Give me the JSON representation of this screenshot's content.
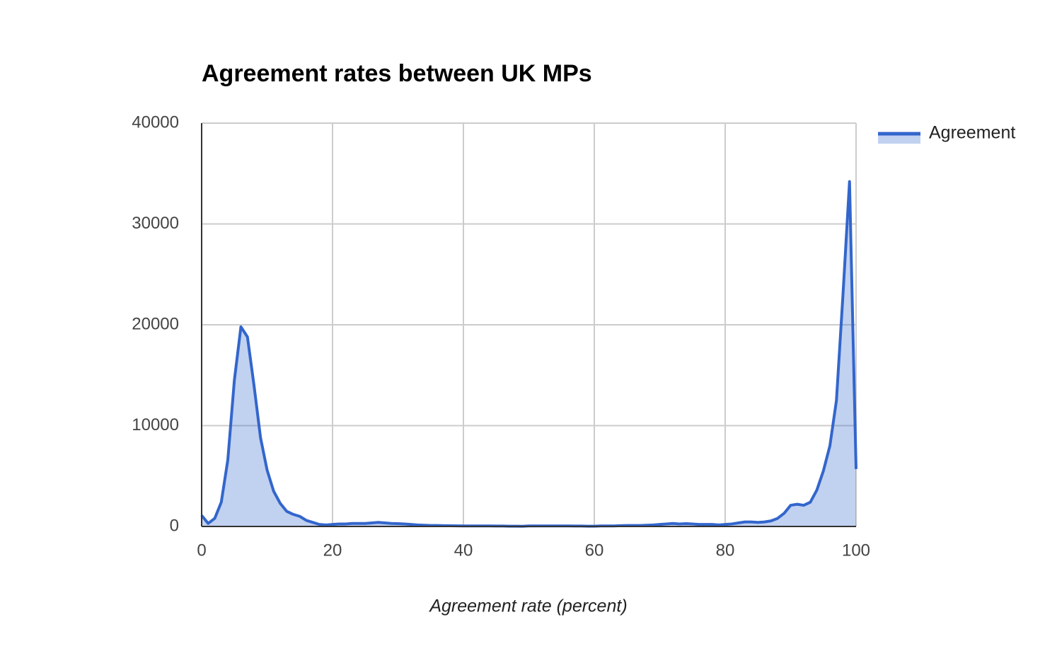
{
  "chart_data": {
    "type": "area",
    "title": "Agreement rates between UK MPs",
    "x_label": "Agreement rate (percent)",
    "x": [
      0,
      1,
      2,
      3,
      4,
      5,
      6,
      7,
      8,
      9,
      10,
      11,
      12,
      13,
      14,
      15,
      16,
      17,
      18,
      19,
      20,
      21,
      22,
      23,
      24,
      25,
      26,
      27,
      28,
      29,
      30,
      31,
      32,
      33,
      34,
      35,
      36,
      37,
      38,
      39,
      40,
      41,
      42,
      43,
      44,
      45,
      46,
      47,
      48,
      49,
      50,
      51,
      52,
      53,
      54,
      55,
      56,
      57,
      58,
      59,
      60,
      61,
      62,
      63,
      64,
      65,
      66,
      67,
      68,
      69,
      70,
      71,
      72,
      73,
      74,
      75,
      76,
      77,
      78,
      79,
      80,
      81,
      82,
      83,
      84,
      85,
      86,
      87,
      88,
      89,
      90,
      91,
      92,
      93,
      94,
      95,
      96,
      97,
      98,
      99,
      100
    ],
    "series": [
      {
        "name": "Agreement",
        "color": "#3366cc",
        "values": [
          1100,
          300,
          800,
          2400,
          6600,
          14500,
          19800,
          18800,
          14000,
          8800,
          5600,
          3500,
          2300,
          1500,
          1200,
          1000,
          600,
          400,
          200,
          150,
          200,
          250,
          250,
          300,
          300,
          300,
          350,
          400,
          350,
          300,
          280,
          250,
          200,
          150,
          120,
          100,
          100,
          80,
          70,
          60,
          50,
          50,
          50,
          50,
          50,
          40,
          40,
          30,
          30,
          20,
          50,
          50,
          50,
          50,
          50,
          50,
          50,
          40,
          40,
          30,
          30,
          50,
          50,
          50,
          80,
          100,
          100,
          100,
          120,
          150,
          200,
          250,
          300,
          250,
          280,
          250,
          200,
          200,
          200,
          150,
          200,
          250,
          350,
          450,
          450,
          400,
          450,
          550,
          800,
          1300,
          2100,
          2200,
          2100,
          2400,
          3600,
          5500,
          8000,
          12500,
          23000,
          34200,
          5700
        ]
      }
    ],
    "xlim": [
      0,
      100
    ],
    "xticks": [
      0,
      20,
      40,
      60,
      80,
      100
    ],
    "ylim": [
      0,
      40000
    ],
    "yticks": [
      0,
      10000,
      20000,
      30000,
      40000
    ],
    "grid": true,
    "legend": "right"
  }
}
